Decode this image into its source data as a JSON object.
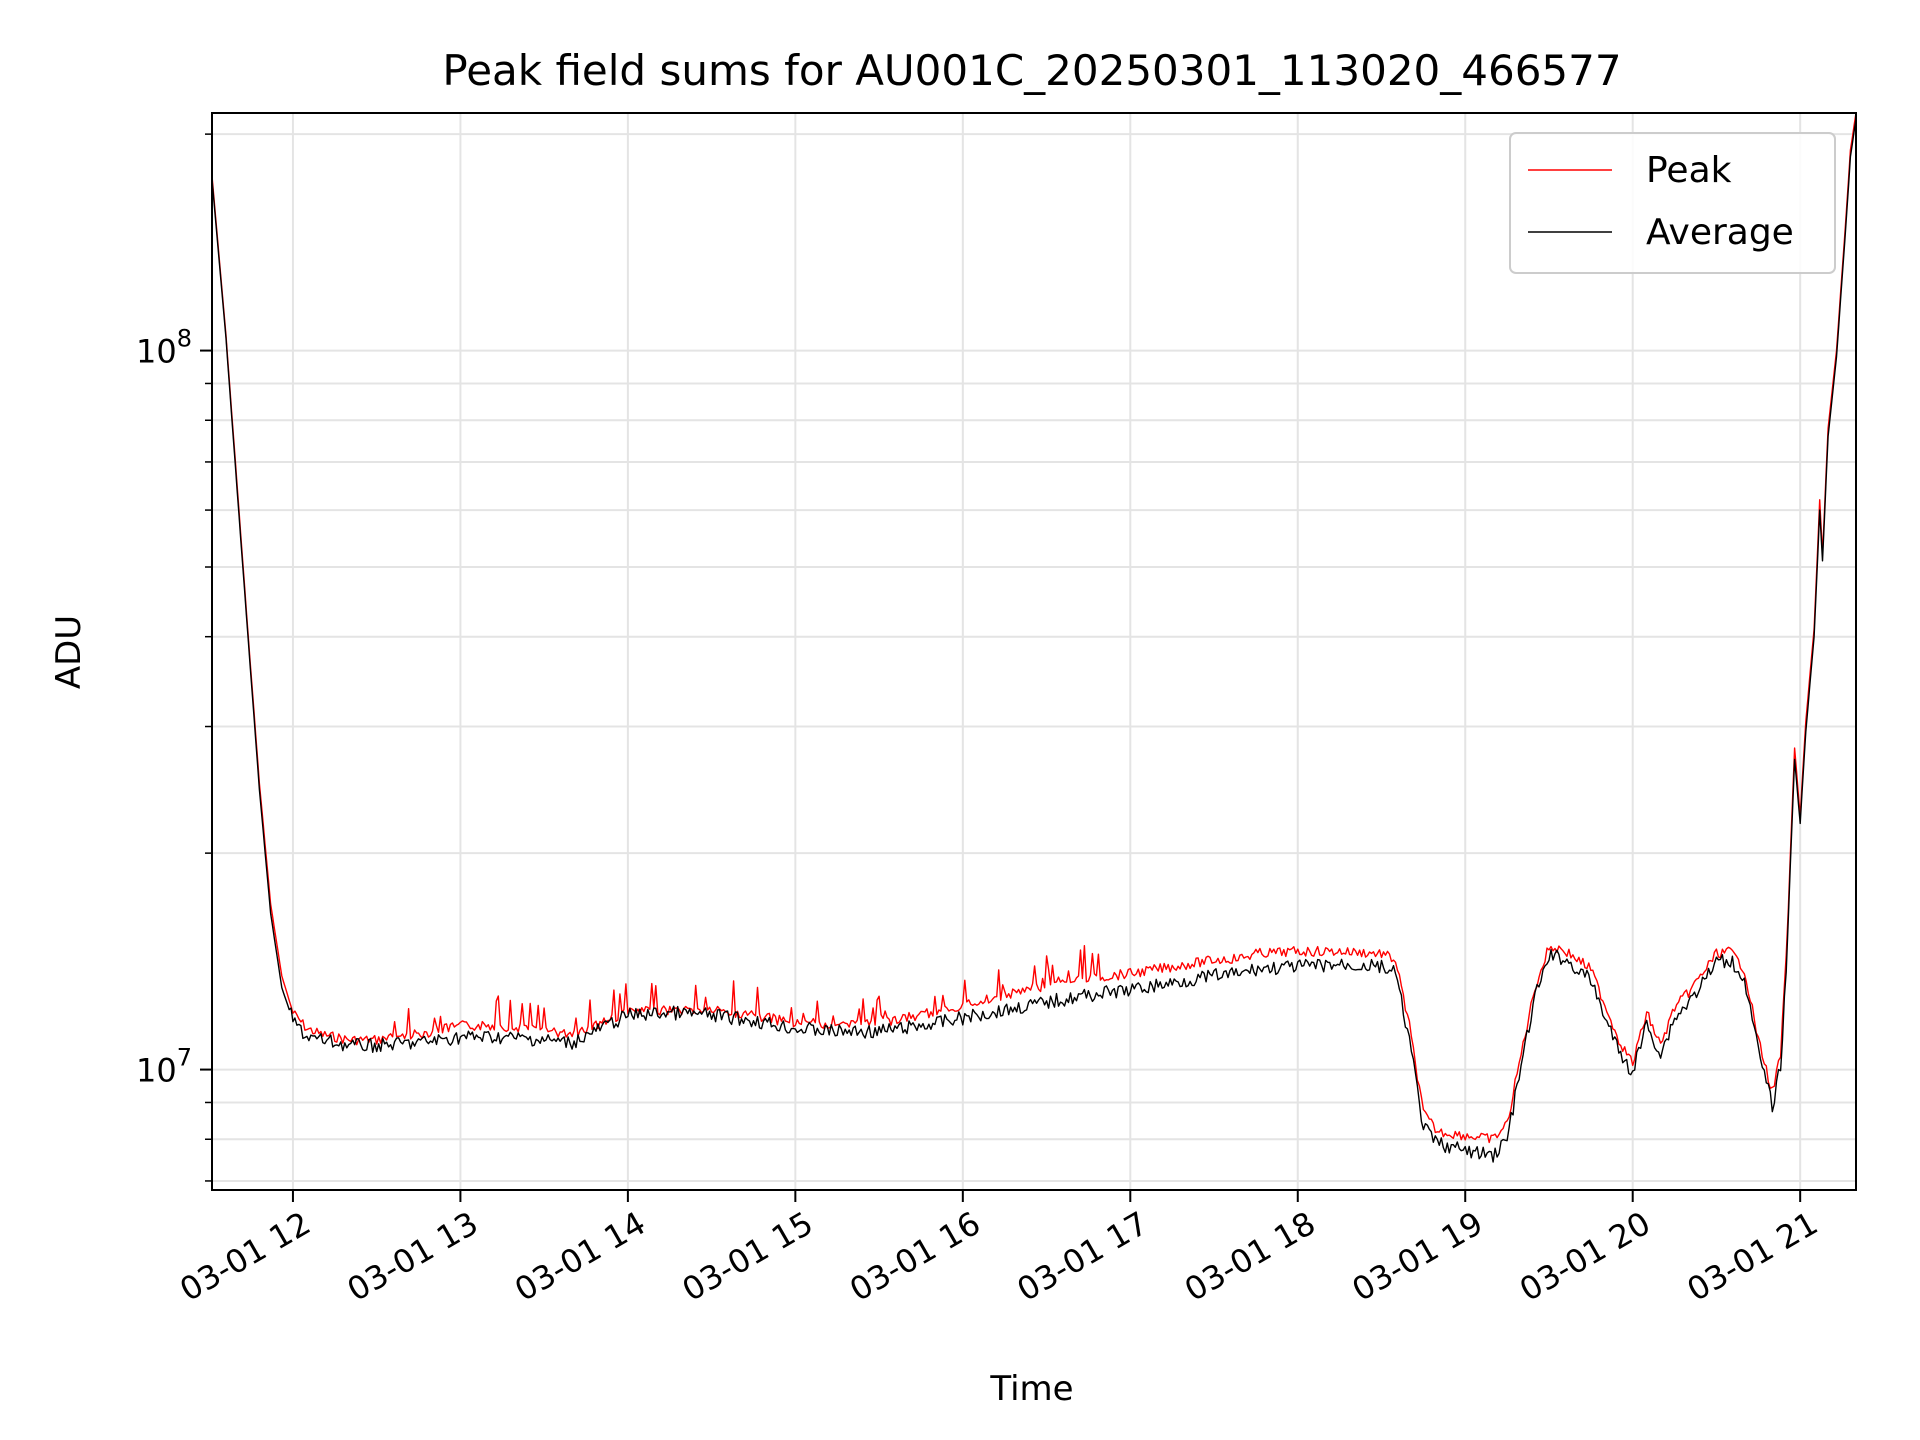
{
  "chart_data": {
    "type": "line",
    "title": "Peak field sums for AU001C_20250301_113020_466577",
    "xlabel": "Time",
    "ylabel": "ADU",
    "x_ticks": [
      "03-01 12",
      "03-01 13",
      "03-01 14",
      "03-01 15",
      "03-01 16",
      "03-01 17",
      "03-01 18",
      "03-01 19",
      "03-01 20",
      "03-01 21"
    ],
    "y_scale": "log",
    "y_major_ticks": [
      {
        "value": 10000000,
        "base": "10",
        "exp": "7"
      },
      {
        "value": 100000000,
        "base": "10",
        "exp": "8"
      }
    ],
    "xlim": [
      "2025-03-01T11:31",
      "2025-03-01T21:20"
    ],
    "ylim": [
      6800000,
      214000000
    ],
    "grid": true,
    "legend_position": "top-right",
    "series": [
      {
        "name": "Peak",
        "color": "#ff0000",
        "x": [
          "2025-03-01T11:31",
          "2025-03-01T11:36",
          "2025-03-01T11:40",
          "2025-03-01T11:44",
          "2025-03-01T11:48",
          "2025-03-01T11:52",
          "2025-03-01T11:56",
          "2025-03-01T12:00",
          "2025-03-01T12:05",
          "2025-03-01T12:10",
          "2025-03-01T12:20",
          "2025-03-01T12:30",
          "2025-03-01T12:45",
          "2025-03-01T13:00",
          "2025-03-01T13:15",
          "2025-03-01T13:30",
          "2025-03-01T13:40",
          "2025-03-01T13:50",
          "2025-03-01T14:00",
          "2025-03-01T14:15",
          "2025-03-01T14:30",
          "2025-03-01T14:45",
          "2025-03-01T15:00",
          "2025-03-01T15:15",
          "2025-03-01T15:30",
          "2025-03-01T15:45",
          "2025-03-01T16:00",
          "2025-03-01T16:15",
          "2025-03-01T16:30",
          "2025-03-01T16:45",
          "2025-03-01T17:00",
          "2025-03-01T17:15",
          "2025-03-01T17:30",
          "2025-03-01T17:40",
          "2025-03-01T17:45",
          "2025-03-01T18:00",
          "2025-03-01T18:15",
          "2025-03-01T18:30",
          "2025-03-01T18:35",
          "2025-03-01T18:40",
          "2025-03-01T18:45",
          "2025-03-01T18:50",
          "2025-03-01T19:00",
          "2025-03-01T19:10",
          "2025-03-01T19:15",
          "2025-03-01T19:20",
          "2025-03-01T19:25",
          "2025-03-01T19:30",
          "2025-03-01T19:35",
          "2025-03-01T19:45",
          "2025-03-01T19:55",
          "2025-03-01T20:00",
          "2025-03-01T20:05",
          "2025-03-01T20:10",
          "2025-03-01T20:15",
          "2025-03-01T20:20",
          "2025-03-01T20:25",
          "2025-03-01T20:30",
          "2025-03-01T20:35",
          "2025-03-01T20:40",
          "2025-03-01T20:45",
          "2025-03-01T20:50",
          "2025-03-01T20:53",
          "2025-03-01T20:55",
          "2025-03-01T20:58",
          "2025-03-01T21:00",
          "2025-03-01T21:02",
          "2025-03-01T21:05",
          "2025-03-01T21:07",
          "2025-03-01T21:08",
          "2025-03-01T21:10",
          "2025-03-01T21:13",
          "2025-03-01T21:16",
          "2025-03-01T21:18",
          "2025-03-01T21:20"
        ],
        "values": [
          175000000,
          105000000,
          65000000,
          40000000,
          25000000,
          17000000,
          13500000,
          12000000,
          11400000,
          11200000,
          11000000,
          11000000,
          11200000,
          11500000,
          11500000,
          11300000,
          11200000,
          11600000,
          12000000,
          12100000,
          12100000,
          11900000,
          11600000,
          11500000,
          11600000,
          11900000,
          12300000,
          12700000,
          13100000,
          13400000,
          13600000,
          13900000,
          14200000,
          14300000,
          14500000,
          14600000,
          14600000,
          14500000,
          14200000,
          11500000,
          8700000,
          8200000,
          8100000,
          8000000,
          8400000,
          10500000,
          13000000,
          14800000,
          14700000,
          13800000,
          11000000,
          10200000,
          12000000,
          10800000,
          12200000,
          12800000,
          13600000,
          14500000,
          14600000,
          13800000,
          11000000,
          9300000,
          10500000,
          14300000,
          28000000,
          22500000,
          30500000,
          41000000,
          62000000,
          52000000,
          78000000,
          100000000,
          145000000,
          190000000,
          214000000
        ]
      },
      {
        "name": "Average",
        "color": "#000000",
        "x": [
          "2025-03-01T11:31",
          "2025-03-01T11:36",
          "2025-03-01T11:40",
          "2025-03-01T11:44",
          "2025-03-01T11:48",
          "2025-03-01T11:52",
          "2025-03-01T11:56",
          "2025-03-01T12:00",
          "2025-03-01T12:05",
          "2025-03-01T12:10",
          "2025-03-01T12:20",
          "2025-03-01T12:30",
          "2025-03-01T12:45",
          "2025-03-01T13:00",
          "2025-03-01T13:15",
          "2025-03-01T13:30",
          "2025-03-01T13:40",
          "2025-03-01T13:50",
          "2025-03-01T14:00",
          "2025-03-01T14:15",
          "2025-03-01T14:30",
          "2025-03-01T14:45",
          "2025-03-01T15:00",
          "2025-03-01T15:15",
          "2025-03-01T15:30",
          "2025-03-01T15:45",
          "2025-03-01T16:00",
          "2025-03-01T16:15",
          "2025-03-01T16:30",
          "2025-03-01T16:45",
          "2025-03-01T17:00",
          "2025-03-01T17:15",
          "2025-03-01T17:30",
          "2025-03-01T17:40",
          "2025-03-01T17:45",
          "2025-03-01T18:00",
          "2025-03-01T18:15",
          "2025-03-01T18:30",
          "2025-03-01T18:35",
          "2025-03-01T18:40",
          "2025-03-01T18:45",
          "2025-03-01T18:50",
          "2025-03-01T19:00",
          "2025-03-01T19:10",
          "2025-03-01T19:15",
          "2025-03-01T19:20",
          "2025-03-01T19:25",
          "2025-03-01T19:30",
          "2025-03-01T19:35",
          "2025-03-01T19:45",
          "2025-03-01T19:55",
          "2025-03-01T20:00",
          "2025-03-01T20:05",
          "2025-03-01T20:10",
          "2025-03-01T20:15",
          "2025-03-01T20:20",
          "2025-03-01T20:25",
          "2025-03-01T20:30",
          "2025-03-01T20:35",
          "2025-03-01T20:40",
          "2025-03-01T20:45",
          "2025-03-01T20:50",
          "2025-03-01T20:53",
          "2025-03-01T20:55",
          "2025-03-01T20:58",
          "2025-03-01T21:00",
          "2025-03-01T21:02",
          "2025-03-01T21:05",
          "2025-03-01T21:07",
          "2025-03-01T21:08",
          "2025-03-01T21:10",
          "2025-03-01T21:13",
          "2025-03-01T21:16",
          "2025-03-01T21:18",
          "2025-03-01T21:20"
        ],
        "values": [
          173000000,
          104000000,
          64000000,
          39500000,
          24500000,
          16500000,
          13000000,
          11700000,
          11100000,
          11000000,
          10800000,
          10800000,
          10900000,
          11100000,
          11100000,
          11000000,
          10900000,
          11400000,
          11900000,
          12000000,
          11900000,
          11700000,
          11400000,
          11300000,
          11300000,
          11500000,
          11800000,
          12100000,
          12400000,
          12700000,
          12900000,
          13200000,
          13500000,
          13600000,
          13800000,
          13900000,
          14000000,
          13900000,
          13600000,
          11000000,
          8300000,
          7900000,
          7700000,
          7600000,
          8000000,
          10100000,
          12600000,
          14400000,
          14300000,
          13300000,
          10600000,
          9900000,
          11600000,
          10500000,
          11800000,
          12400000,
          13200000,
          14100000,
          14200000,
          13400000,
          10600000,
          8900000,
          10100000,
          13900000,
          27000000,
          22000000,
          29500000,
          40000000,
          60000000,
          51000000,
          76000000,
          98000000,
          142000000,
          186000000,
          210000000
        ]
      }
    ]
  }
}
